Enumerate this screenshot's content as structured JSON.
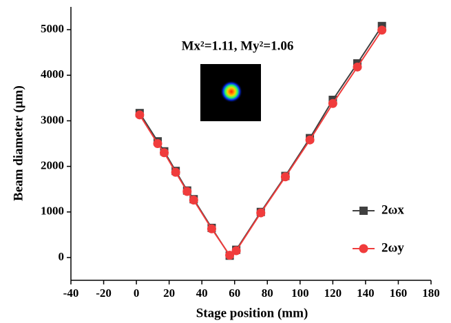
{
  "chart_data": {
    "type": "line",
    "x_label": "Stage position (mm)",
    "y_label": "Beam diameter (μm)",
    "annotation": "Mx²=1.11, My²=1.06",
    "x": [
      2,
      13,
      17,
      24,
      31,
      35,
      46,
      57,
      61,
      76,
      91,
      106,
      120,
      135,
      150
    ],
    "series": [
      {
        "name": "2ωx",
        "color": "#404040",
        "marker": "square",
        "values": [
          3170,
          2550,
          2330,
          1900,
          1470,
          1280,
          650,
          40,
          170,
          1000,
          1790,
          2620,
          3460,
          4260,
          5080
        ]
      },
      {
        "name": "2ωy",
        "color": "#f03c3c",
        "marker": "circle",
        "values": [
          3130,
          2500,
          2300,
          1870,
          1450,
          1260,
          630,
          50,
          150,
          980,
          1770,
          2580,
          3380,
          4180,
          4990
        ]
      }
    ],
    "xlim": [
      -40,
      180
    ],
    "xticks": [
      -40,
      -20,
      0,
      20,
      40,
      60,
      80,
      100,
      120,
      140,
      160,
      180
    ],
    "ylim": [
      -500,
      5500
    ],
    "yticks": [
      0,
      1000,
      2000,
      3000,
      4000,
      5000
    ],
    "legend": "lower right"
  }
}
